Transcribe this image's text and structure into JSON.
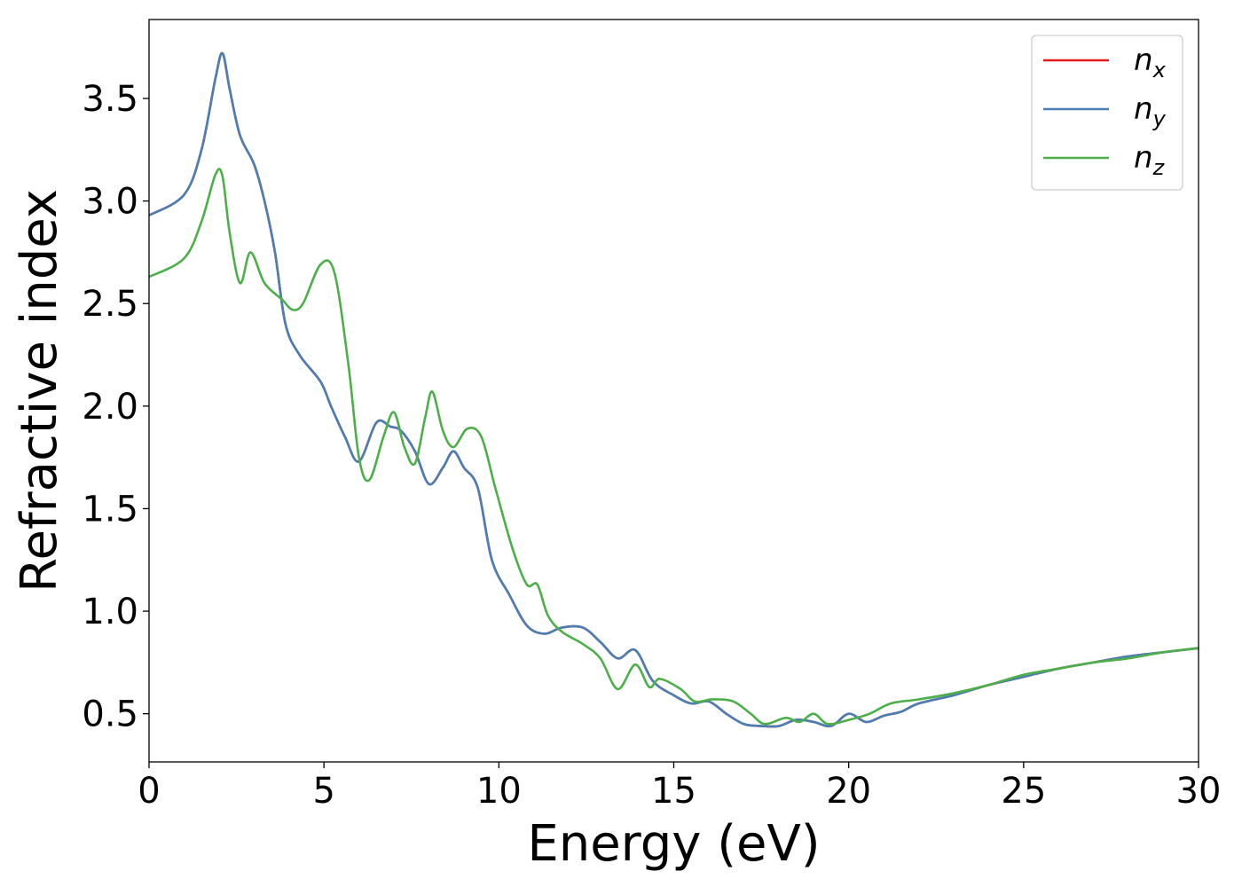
{
  "chart_data": {
    "type": "line",
    "xlabel": "Energy (eV)",
    "ylabel": "Refractive index",
    "xlim": [
      0,
      30
    ],
    "ylim": [
      0.265,
      3.885
    ],
    "xticks": [
      0,
      5,
      10,
      15,
      20,
      25,
      30
    ],
    "yticks": [
      0.5,
      1.0,
      1.5,
      2.0,
      2.5,
      3.0,
      3.5
    ],
    "ytick_labels": [
      "0.5",
      "1.0",
      "1.5",
      "2.0",
      "2.5",
      "3.0",
      "3.5"
    ],
    "grid": false,
    "legend_position": "top-right",
    "series": [
      {
        "name": "n",
        "subscript": "x",
        "color": "#e41a1c",
        "x": [
          0,
          1,
          1.5,
          1.9,
          2.1,
          2.3,
          2.6,
          3,
          3.3,
          3.6,
          3.9,
          4.3,
          4.9,
          5.2,
          5.6,
          6,
          6.5,
          6.9,
          7.2,
          7.6,
          8,
          8.4,
          8.7,
          9,
          9.4,
          9.8,
          10.3,
          10.8,
          11.3,
          11.8,
          12.4,
          12.9,
          13.4,
          13.9,
          14.4,
          15,
          15.5,
          16,
          16.5,
          17,
          17.5,
          18,
          18.5,
          19,
          19.5,
          20,
          20.5,
          21,
          21.5,
          22,
          23,
          24,
          25,
          26,
          27,
          28,
          29,
          30
        ],
        "y": [
          2.93,
          3.03,
          3.25,
          3.6,
          3.72,
          3.55,
          3.32,
          3.18,
          3.0,
          2.75,
          2.4,
          2.25,
          2.12,
          2.0,
          1.85,
          1.73,
          1.92,
          1.9,
          1.88,
          1.78,
          1.62,
          1.7,
          1.78,
          1.7,
          1.6,
          1.25,
          1.08,
          0.93,
          0.89,
          0.92,
          0.92,
          0.85,
          0.77,
          0.81,
          0.66,
          0.59,
          0.55,
          0.56,
          0.5,
          0.45,
          0.44,
          0.44,
          0.47,
          0.46,
          0.44,
          0.5,
          0.46,
          0.49,
          0.51,
          0.55,
          0.59,
          0.64,
          0.68,
          0.72,
          0.75,
          0.78,
          0.8,
          0.82
        ]
      },
      {
        "name": "n",
        "subscript": "y",
        "color": "#4a7fb5",
        "x": [
          0,
          1,
          1.5,
          1.9,
          2.1,
          2.3,
          2.6,
          3,
          3.3,
          3.6,
          3.9,
          4.3,
          4.9,
          5.2,
          5.6,
          6,
          6.5,
          6.9,
          7.2,
          7.6,
          8,
          8.4,
          8.7,
          9,
          9.4,
          9.8,
          10.3,
          10.8,
          11.3,
          11.8,
          12.4,
          12.9,
          13.4,
          13.9,
          14.4,
          15,
          15.5,
          16,
          16.5,
          17,
          17.5,
          18,
          18.5,
          19,
          19.5,
          20,
          20.5,
          21,
          21.5,
          22,
          23,
          24,
          25,
          26,
          27,
          28,
          29,
          30
        ],
        "y": [
          2.93,
          3.03,
          3.25,
          3.6,
          3.72,
          3.55,
          3.32,
          3.18,
          3.0,
          2.75,
          2.4,
          2.25,
          2.12,
          2.0,
          1.85,
          1.73,
          1.92,
          1.9,
          1.88,
          1.78,
          1.62,
          1.7,
          1.78,
          1.7,
          1.6,
          1.25,
          1.08,
          0.93,
          0.89,
          0.92,
          0.92,
          0.85,
          0.77,
          0.81,
          0.66,
          0.59,
          0.55,
          0.56,
          0.5,
          0.45,
          0.44,
          0.44,
          0.47,
          0.46,
          0.44,
          0.5,
          0.46,
          0.49,
          0.51,
          0.55,
          0.59,
          0.64,
          0.68,
          0.72,
          0.75,
          0.78,
          0.8,
          0.82
        ]
      },
      {
        "name": "n",
        "subscript": "z",
        "color": "#4daf4a",
        "x": [
          0,
          1,
          1.5,
          1.9,
          2.1,
          2.3,
          2.6,
          2.9,
          3.3,
          3.8,
          4.1,
          4.4,
          4.9,
          5.3,
          5.7,
          6,
          6.3,
          6.7,
          7.0,
          7.3,
          7.6,
          7.9,
          8.1,
          8.4,
          8.7,
          9.1,
          9.5,
          9.9,
          10.4,
          10.8,
          11.1,
          11.4,
          11.8,
          12.4,
          12.9,
          13.4,
          13.9,
          14.3,
          14.6,
          15.2,
          15.6,
          16.1,
          16.7,
          17.2,
          17.6,
          18.2,
          18.6,
          19.0,
          19.4,
          20.0,
          20.6,
          21.2,
          22,
          23,
          24,
          25,
          26,
          27,
          28,
          29,
          30
        ],
        "y": [
          2.63,
          2.72,
          2.9,
          3.13,
          3.12,
          2.85,
          2.6,
          2.75,
          2.6,
          2.52,
          2.47,
          2.5,
          2.69,
          2.65,
          2.2,
          1.75,
          1.64,
          1.85,
          1.97,
          1.8,
          1.72,
          1.95,
          2.07,
          1.88,
          1.8,
          1.89,
          1.85,
          1.6,
          1.3,
          1.13,
          1.13,
          0.98,
          0.9,
          0.84,
          0.77,
          0.62,
          0.74,
          0.63,
          0.67,
          0.62,
          0.56,
          0.57,
          0.56,
          0.5,
          0.45,
          0.48,
          0.46,
          0.5,
          0.45,
          0.47,
          0.5,
          0.55,
          0.57,
          0.6,
          0.64,
          0.69,
          0.72,
          0.75,
          0.77,
          0.8,
          0.82
        ]
      }
    ]
  }
}
